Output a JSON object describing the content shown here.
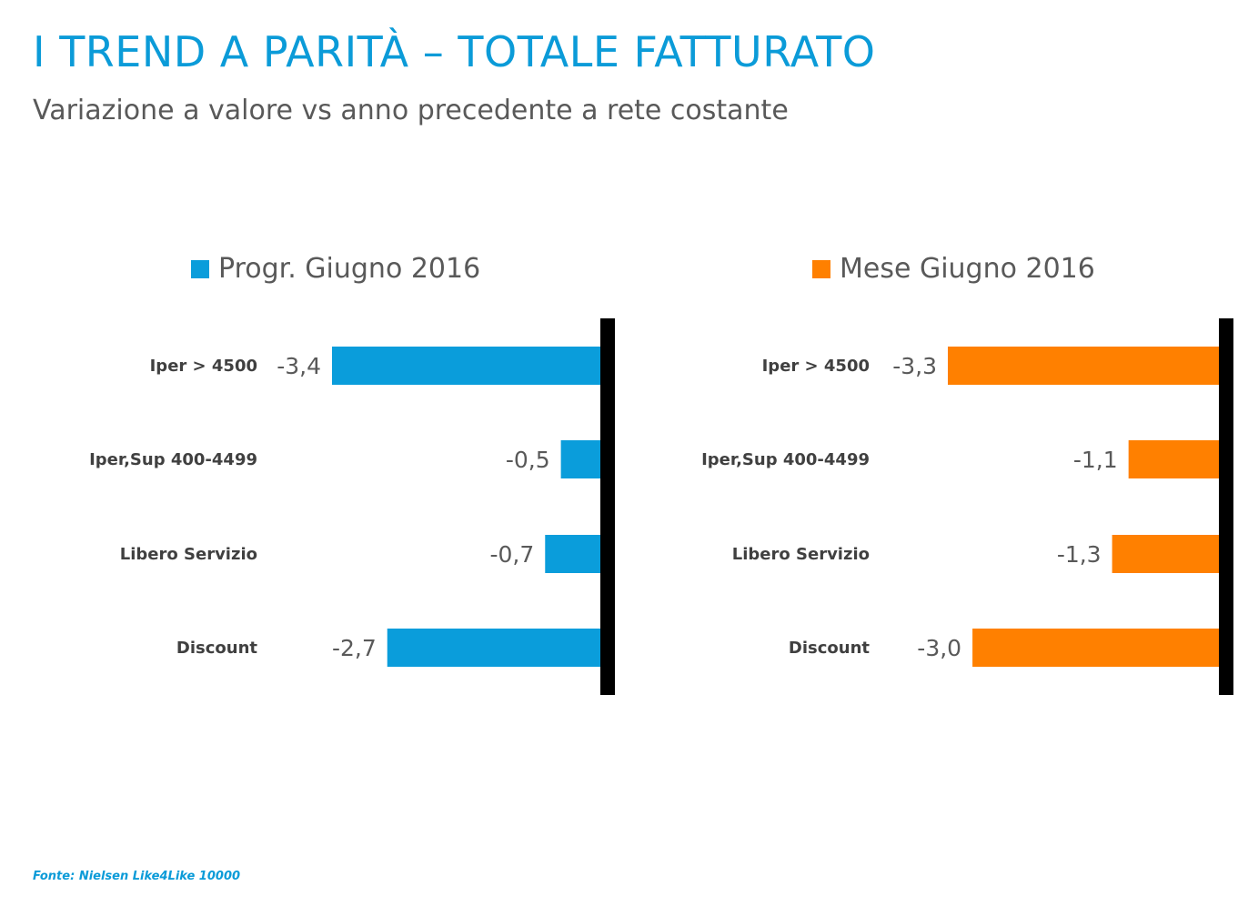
{
  "header": {
    "title": "I TREND A PARITÀ – TOTALE FATTURATO",
    "subtitle": "Variazione a valore vs anno precedente a rete costante"
  },
  "source": "Fonte: Nielsen Like4Like 10000",
  "colors": {
    "left": "#0a9ddb",
    "right": "#ff8000",
    "axis": "#000000"
  },
  "chart_data": [
    {
      "type": "bar",
      "orientation": "horizontal",
      "legend": "Progr. Giugno 2016",
      "categories": [
        "Iper > 4500",
        "Iper,Sup 400-4499",
        "Libero Servizio",
        "Discount"
      ],
      "values": [
        -3.4,
        -0.5,
        -0.7,
        -2.7
      ],
      "value_labels": [
        "-3,4",
        "-0,5",
        "-0,7",
        "-2,7"
      ],
      "xlim": [
        -3.4,
        0
      ]
    },
    {
      "type": "bar",
      "orientation": "horizontal",
      "legend": "Mese Giugno 2016",
      "categories": [
        "Iper > 4500",
        "Iper,Sup 400-4499",
        "Libero Servizio",
        "Discount"
      ],
      "values": [
        -3.3,
        -1.1,
        -1.3,
        -3.0
      ],
      "value_labels": [
        "-3,3",
        "-1,1",
        "-1,3",
        "-3,0"
      ],
      "xlim": [
        -3.3,
        0
      ]
    }
  ]
}
